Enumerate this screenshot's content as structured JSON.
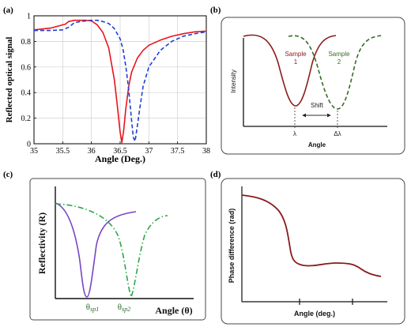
{
  "panels": {
    "a": {
      "label": "(a)"
    },
    "b": {
      "label": "(b)"
    },
    "c": {
      "label": "(c)"
    },
    "d": {
      "label": "(d)"
    }
  },
  "colors": {
    "red": "#e8141b",
    "blue": "#1f3fd6",
    "maroon": "#8b1a1a",
    "darkgreen": "#3a6b2a",
    "purple": "#7a44c4",
    "brightgreen": "#2aa84a",
    "frame_border": "#4a4a4a"
  },
  "chart_data": [
    {
      "panel": "a",
      "type": "line",
      "xlabel": "Angle (Deg.)",
      "ylabel": "Reflected optical signal",
      "xlim": [
        35,
        38
      ],
      "ylim": [
        0,
        1
      ],
      "xticks": [
        "35",
        "35.5",
        "36",
        "36.5",
        "37",
        "37.5",
        "38"
      ],
      "yticks": [
        "0",
        "0.2",
        "0.4",
        "0.6",
        "0.8",
        "1"
      ],
      "grid": true,
      "series": [
        {
          "style": "solid",
          "color": "#e8141b",
          "x": [
            35.0,
            35.3,
            35.55,
            35.6,
            35.7,
            35.8,
            35.9,
            36.0,
            36.1,
            36.2,
            36.3,
            36.4,
            36.45,
            36.5,
            36.53,
            36.56,
            36.6,
            36.65,
            36.7,
            36.8,
            36.9,
            37.0,
            37.2,
            37.4,
            37.6,
            37.8,
            38.0
          ],
          "y": [
            0.89,
            0.905,
            0.935,
            0.955,
            0.965,
            0.965,
            0.965,
            0.96,
            0.93,
            0.87,
            0.75,
            0.5,
            0.3,
            0.09,
            0.01,
            0.1,
            0.28,
            0.45,
            0.56,
            0.67,
            0.73,
            0.77,
            0.81,
            0.84,
            0.86,
            0.875,
            0.88
          ]
        },
        {
          "style": "dashed",
          "color": "#1f3fd6",
          "x": [
            35.0,
            35.3,
            35.5,
            35.6,
            35.7,
            35.8,
            35.9,
            36.0,
            36.1,
            36.2,
            36.3,
            36.4,
            36.5,
            36.55,
            36.6,
            36.65,
            36.7,
            36.73,
            36.76,
            36.8,
            36.85,
            36.9,
            37.0,
            37.2,
            37.4,
            37.6,
            37.8,
            38.0
          ],
          "y": [
            0.885,
            0.885,
            0.89,
            0.91,
            0.945,
            0.955,
            0.96,
            0.965,
            0.965,
            0.955,
            0.94,
            0.9,
            0.82,
            0.74,
            0.6,
            0.42,
            0.18,
            0.05,
            0.02,
            0.14,
            0.3,
            0.45,
            0.6,
            0.73,
            0.8,
            0.84,
            0.86,
            0.875
          ]
        }
      ]
    },
    {
      "panel": "b",
      "type": "line",
      "xlabel": "Angle",
      "ylabel": "Intensity",
      "series_labels": [
        "Sample\n1",
        "Sample\n2"
      ],
      "annotations": {
        "shift": "Shift",
        "lambda1": "λ",
        "lambda2": "Δλ"
      },
      "series": [
        {
          "name": "Sample 1",
          "style": "solid",
          "color": "#8b1a1a",
          "shape": "dip"
        },
        {
          "name": "Sample 2",
          "style": "dashed",
          "color": "#3a6b2a",
          "shape": "dip"
        }
      ]
    },
    {
      "panel": "c",
      "type": "line",
      "ylabel": "Reflectivity (R)",
      "xlabel": "Angle (θ)",
      "markers": [
        "θsp1",
        "θsp2"
      ],
      "series": [
        {
          "style": "solid",
          "color": "#7a44c4",
          "shape": "dip"
        },
        {
          "style": "dashdot",
          "color": "#2aa84a",
          "shape": "dip"
        }
      ]
    },
    {
      "panel": "d",
      "type": "line",
      "ylabel": "Phase difference (rad)",
      "xlabel": "Angle (deg.)",
      "series": [
        {
          "style": "solid",
          "color": "#8b1a1a",
          "shape": "decreasing-step"
        }
      ]
    }
  ]
}
